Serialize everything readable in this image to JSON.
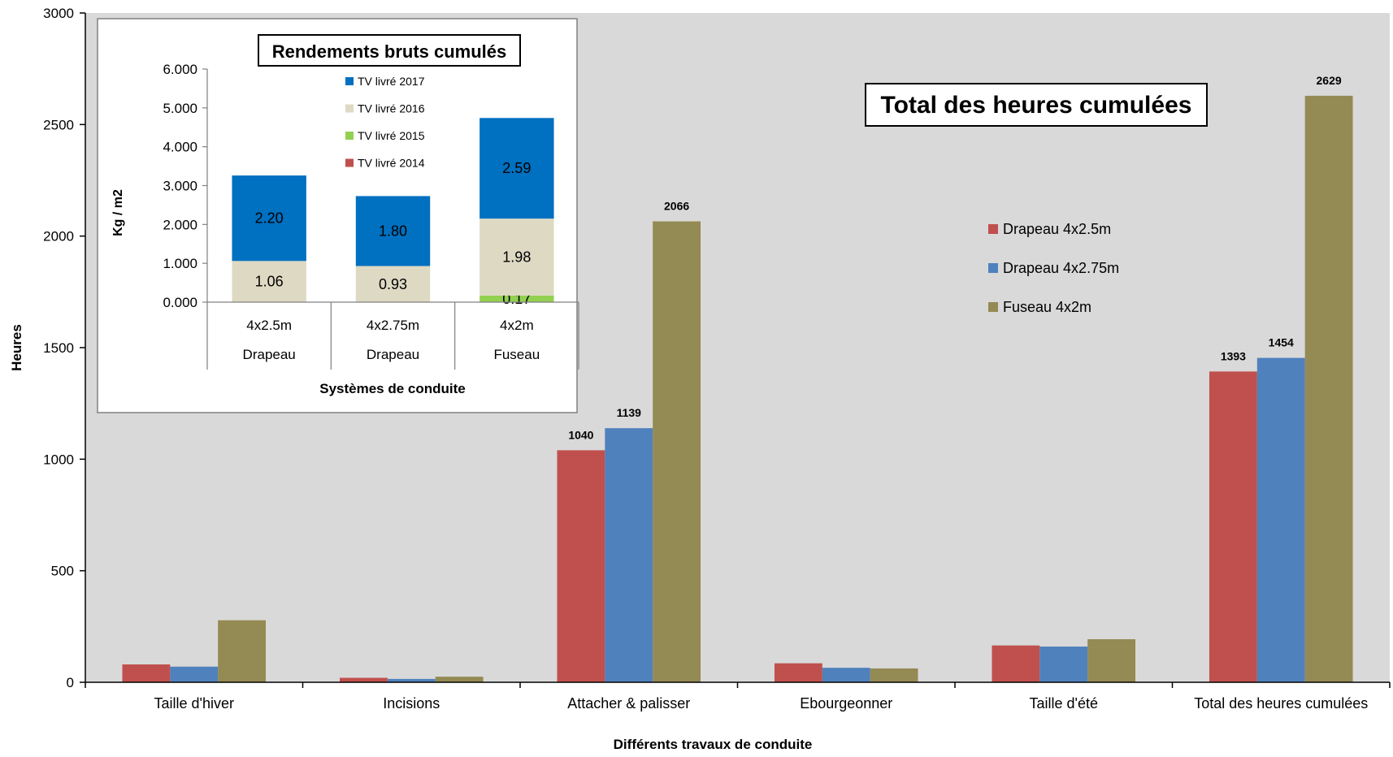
{
  "chart_data": [
    {
      "type": "bar",
      "title": "Total des heures cumulées",
      "xlabel": "Différents travaux de conduite",
      "ylabel": "Heures",
      "ylim": [
        0,
        3000
      ],
      "yticks": [
        0,
        500,
        1000,
        1500,
        2000,
        2500,
        3000
      ],
      "grid": false,
      "legend_position": "right",
      "categories": [
        "Taille d'hiver",
        "Incisions",
        "Attacher & palisser",
        "Ebourgeonner",
        "Taille d'été",
        "Total des heures cumulées"
      ],
      "series": [
        {
          "name": "Drapeau 4x2.5m",
          "color": "#C0504D",
          "values": [
            80,
            20,
            1040,
            85,
            165,
            1393
          ]
        },
        {
          "name": "Drapeau 4x2.75m",
          "color": "#4F81BD",
          "values": [
            70,
            15,
            1139,
            65,
            160,
            1454
          ]
        },
        {
          "name": "Fuseau 4x2m",
          "color": "#948A54",
          "values": [
            278,
            25,
            2066,
            62,
            193,
            2629
          ]
        }
      ],
      "data_labels": [
        {
          "series": 0,
          "category": 2,
          "text": "1040"
        },
        {
          "series": 1,
          "category": 2,
          "text": "1139"
        },
        {
          "series": 2,
          "category": 2,
          "text": "2066"
        },
        {
          "series": 0,
          "category": 5,
          "text": "1393"
        },
        {
          "series": 1,
          "category": 5,
          "text": "1454"
        },
        {
          "series": 2,
          "category": 5,
          "text": "2629"
        }
      ],
      "plot_background": "#D9D9D9"
    },
    {
      "type": "bar",
      "stacked": true,
      "title": "Rendements bruts cumulés",
      "xlabel": "Systèmes de conduite",
      "ylabel": "Kg / m2",
      "ylim": [
        0,
        6
      ],
      "yticks": [
        "0.000",
        "1.000",
        "2.000",
        "3.000",
        "4.000",
        "5.000",
        "6.000"
      ],
      "legend_position": "top-center",
      "categories": [
        {
          "line1": "4x2.5m",
          "line2": "Drapeau"
        },
        {
          "line1": "4x2.75m",
          "line2": "Drapeau"
        },
        {
          "line1": "4x2m",
          "line2": "Fuseau"
        }
      ],
      "series": [
        {
          "name": "TV livré 2014",
          "color": "#C0504D",
          "values": [
            0,
            0,
            0
          ],
          "labels": [
            "",
            "",
            ""
          ]
        },
        {
          "name": "TV livré 2015",
          "color": "#92D050",
          "values": [
            0,
            0,
            0.17
          ],
          "labels": [
            "",
            "",
            "0.17"
          ]
        },
        {
          "name": "TV livré 2016",
          "color": "#DDD9C3",
          "values": [
            1.06,
            0.93,
            1.98
          ],
          "labels": [
            "1.06",
            "0.93",
            "1.98"
          ]
        },
        {
          "name": "TV livré 2017",
          "color": "#0070C0",
          "values": [
            2.2,
            1.8,
            2.59
          ],
          "labels": [
            "2.20",
            "1.80",
            "2.59"
          ]
        }
      ],
      "legend_order": [
        3,
        2,
        1,
        0
      ]
    }
  ]
}
